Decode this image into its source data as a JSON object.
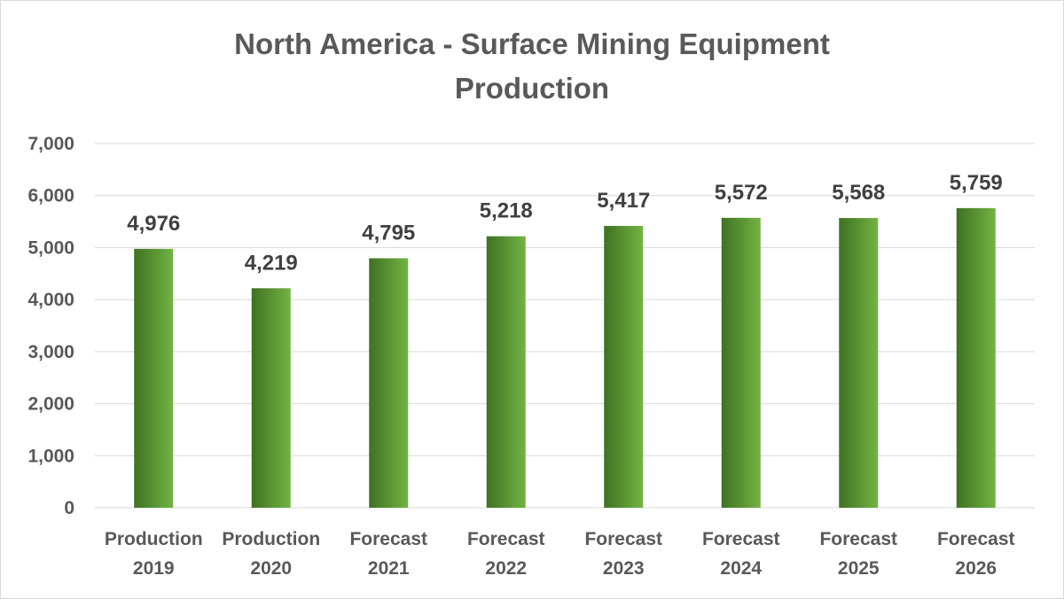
{
  "chart_data": {
    "type": "bar",
    "title": "North America - Surface Mining Equipment Production",
    "title_lines": [
      "North America - Surface Mining Equipment",
      "Production"
    ],
    "categories": [
      [
        "Production",
        "2019"
      ],
      [
        "Production",
        "2020"
      ],
      [
        "Forecast",
        "2021"
      ],
      [
        "Forecast",
        "2022"
      ],
      [
        "Forecast",
        "2023"
      ],
      [
        "Forecast",
        "2024"
      ],
      [
        "Forecast",
        "2025"
      ],
      [
        "Forecast",
        "2026"
      ]
    ],
    "values": [
      4976,
      4219,
      4795,
      5218,
      5417,
      5572,
      5568,
      5759
    ],
    "data_labels": [
      "4,976",
      "4,219",
      "4,795",
      "5,218",
      "5,417",
      "5,572",
      "5,568",
      "5,759"
    ],
    "yticks": [
      "0",
      "1,000",
      "2,000",
      "3,000",
      "4,000",
      "5,000",
      "6,000",
      "7,000"
    ],
    "ylim": [
      0,
      7000
    ],
    "xlabel": "",
    "ylabel": "",
    "grid": true,
    "colors": {
      "bar_dark": "#3f7123",
      "bar_light": "#72b443",
      "grid": "#d9d9d9"
    }
  }
}
